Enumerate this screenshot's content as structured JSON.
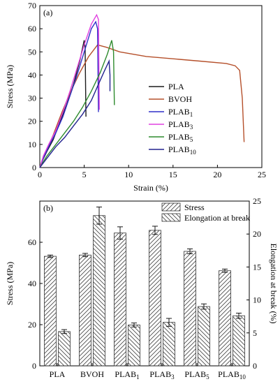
{
  "figure": {
    "panel_a": {
      "label": "(a)",
      "chart_data": {
        "type": "line",
        "xlabel": "Strain (%)",
        "ylabel": "Stress (MPa)",
        "xlim": [
          0,
          25
        ],
        "ylim": [
          0,
          70
        ],
        "xticks": [
          "0",
          "5",
          "10",
          "15",
          "20",
          "25"
        ],
        "yticks": [
          "0",
          "10",
          "20",
          "30",
          "40",
          "50",
          "60",
          "70"
        ],
        "legend_position": "center-right",
        "series": [
          {
            "name": "PLA",
            "name_main": "PLA",
            "name_sub": "",
            "color": "#1b1b1b",
            "points": [
              [
                0,
                0
              ],
              [
                0.3,
                3
              ],
              [
                0.8,
                7
              ],
              [
                1.5,
                12
              ],
              [
                2.2,
                19
              ],
              [
                3,
                27
              ],
              [
                3.8,
                36
              ],
              [
                4.5,
                46
              ],
              [
                5,
                55
              ],
              [
                5.1,
                52
              ],
              [
                5.2,
                22
              ]
            ]
          },
          {
            "name": "BVOH",
            "name_main": "BVOH",
            "name_sub": "",
            "color": "#b5502b",
            "points": [
              [
                0,
                0
              ],
              [
                0.5,
                5
              ],
              [
                1.5,
                14
              ],
              [
                2.5,
                24
              ],
              [
                3.5,
                33
              ],
              [
                4.5,
                41
              ],
              [
                5.5,
                48
              ],
              [
                6.5,
                53
              ],
              [
                7.5,
                52
              ],
              [
                9,
                50
              ],
              [
                12,
                48
              ],
              [
                15,
                47
              ],
              [
                18,
                46
              ],
              [
                21,
                45
              ],
              [
                22,
                44
              ],
              [
                22.5,
                42
              ],
              [
                22.8,
                30
              ],
              [
                23,
                11
              ]
            ]
          },
          {
            "name": "PLAB1",
            "name_main": "PLAB",
            "name_sub": "1",
            "color": "#2f2fc8",
            "points": [
              [
                0,
                0
              ],
              [
                0.4,
                4
              ],
              [
                1,
                9
              ],
              [
                1.8,
                15
              ],
              [
                2.6,
                22
              ],
              [
                3.4,
                31
              ],
              [
                4.2,
                40
              ],
              [
                5,
                50
              ],
              [
                5.8,
                60
              ],
              [
                6.3,
                63
              ],
              [
                6.5,
                60
              ],
              [
                6.6,
                24
              ]
            ]
          },
          {
            "name": "PLAB3",
            "name_main": "PLAB",
            "name_sub": "3",
            "color": "#e040e0",
            "points": [
              [
                0,
                0
              ],
              [
                0.4,
                5
              ],
              [
                1,
                10
              ],
              [
                1.8,
                16
              ],
              [
                2.6,
                24
              ],
              [
                3.4,
                33
              ],
              [
                4.2,
                43
              ],
              [
                5,
                53
              ],
              [
                5.8,
                62
              ],
              [
                6.4,
                66
              ],
              [
                6.6,
                64
              ],
              [
                6.7,
                25
              ]
            ]
          },
          {
            "name": "PLAB5",
            "name_main": "PLAB",
            "name_sub": "5",
            "color": "#2e8b2e",
            "points": [
              [
                0,
                0
              ],
              [
                0.8,
                5
              ],
              [
                1.8,
                10
              ],
              [
                2.8,
                15
              ],
              [
                3.8,
                20
              ],
              [
                4.8,
                26
              ],
              [
                5.8,
                33
              ],
              [
                6.8,
                41
              ],
              [
                7.6,
                49
              ],
              [
                8.1,
                55
              ],
              [
                8.3,
                50
              ],
              [
                8.4,
                27
              ]
            ]
          },
          {
            "name": "PLAB10",
            "name_main": "PLAB",
            "name_sub": "10",
            "color": "#23238f",
            "points": [
              [
                0,
                0
              ],
              [
                0.8,
                4
              ],
              [
                1.8,
                9
              ],
              [
                2.8,
                13
              ],
              [
                3.8,
                18
              ],
              [
                4.8,
                23
              ],
              [
                5.8,
                29
              ],
              [
                6.6,
                36
              ],
              [
                7.3,
                42
              ],
              [
                7.8,
                46
              ],
              [
                7.9,
                40
              ],
              [
                7.9,
                33
              ]
            ]
          }
        ]
      }
    },
    "panel_b": {
      "label": "(b)",
      "chart_data": {
        "type": "bar",
        "categories": [
          "PLA",
          "BVOH",
          "PLAB1",
          "PLAB3",
          "PLAB5",
          "PLAB10"
        ],
        "category_labels": [
          {
            "main": "PLA",
            "sub": ""
          },
          {
            "main": "BVOH",
            "sub": ""
          },
          {
            "main": "PLAB",
            "sub": "1"
          },
          {
            "main": "PLAB",
            "sub": "3"
          },
          {
            "main": "PLAB",
            "sub": "5"
          },
          {
            "main": "PLAB",
            "sub": "10"
          }
        ],
        "ylabel_left": "Stress (MPa)",
        "ylabel_right": "Elongation at break (%)",
        "ylim_left": [
          0,
          80
        ],
        "ylim_right": [
          0,
          25
        ],
        "yticks_left": [
          "0",
          "20",
          "40",
          "60"
        ],
        "yticks_right": [
          "0",
          "5",
          "10",
          "15",
          "20",
          "25"
        ],
        "legend_position": "top-right",
        "series": [
          {
            "name": "Stress",
            "axis": "left",
            "hatch": "diagonal",
            "values": [
              53.2,
              53.8,
              64.5,
              65.8,
              55.6,
              46.2
            ],
            "errors": [
              0.6,
              0.8,
              3.0,
              2.0,
              1.2,
              0.8
            ]
          },
          {
            "name": "Elongation at break",
            "axis": "right",
            "hatch": "diagonal-reverse",
            "values": [
              5.2,
              22.8,
              6.2,
              6.6,
              9.0,
              7.6
            ],
            "errors": [
              0.3,
              1.3,
              0.3,
              0.6,
              0.4,
              0.4
            ]
          }
        ]
      }
    }
  }
}
